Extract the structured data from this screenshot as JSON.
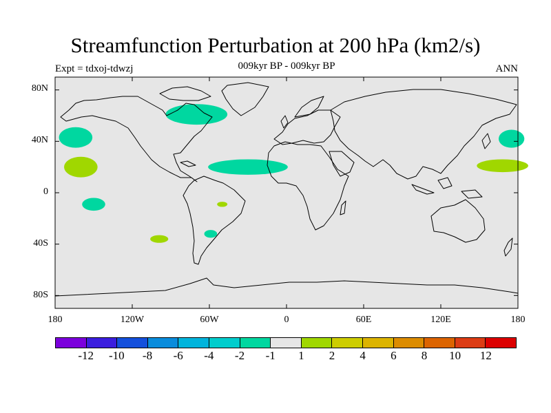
{
  "title": "Streamfunction Perturbation at 200 hPa (km2/s)",
  "expt_label": "Expt = tdxoj-tdwzj",
  "subtitle": "009kyr BP - 009kyr BP",
  "season": "ANN",
  "y_axis": {
    "ticks": [
      "80N",
      "40N",
      "0",
      "40S",
      "80S"
    ],
    "tick_lats": [
      80,
      40,
      0,
      -40,
      -80
    ],
    "range": [
      -90,
      90
    ]
  },
  "x_axis": {
    "ticks": [
      "180",
      "120W",
      "60W",
      "0",
      "60E",
      "120E",
      "180"
    ],
    "tick_lons": [
      -180,
      -120,
      -60,
      0,
      60,
      120,
      180
    ],
    "range": [
      -180,
      180
    ]
  },
  "map": {
    "background_color": "#e6e6e6",
    "projection": "cylindrical-equidistant"
  },
  "anomalies": [
    {
      "label": "N Pacific negative",
      "lon": -164,
      "lat": 43,
      "rlon": 13,
      "rlat": 8,
      "class": "-2..-1"
    },
    {
      "label": "Pacific positive",
      "lon": -160,
      "lat": 20,
      "rlon": 13,
      "rlat": 8,
      "class": "1..2"
    },
    {
      "label": "S Pacific negative",
      "lon": -150,
      "lat": -9,
      "rlon": 9,
      "rlat": 5,
      "class": "-2..-1"
    },
    {
      "label": "SE Pacific positive",
      "lon": -99,
      "lat": -36,
      "rlon": 7,
      "rlat": 3,
      "class": "1..2"
    },
    {
      "label": "Canada negative",
      "lon": -70,
      "lat": 61,
      "rlon": 24,
      "rlat": 8,
      "class": "-2..-1"
    },
    {
      "label": "Atlantic negative",
      "lon": -30,
      "lat": 20,
      "rlon": 31,
      "rlat": 6,
      "class": "-2..-1"
    },
    {
      "label": "Brazil positive",
      "lon": -50,
      "lat": -9,
      "rlon": 4,
      "rlat": 2,
      "class": "1..2"
    },
    {
      "label": "S America negative",
      "lon": -59,
      "lat": -32,
      "rlon": 5,
      "rlat": 3,
      "class": "-2..-1"
    },
    {
      "label": "W Pacific negative",
      "lon": 175,
      "lat": 42,
      "rlon": 10,
      "rlat": 7,
      "class": "-2..-1"
    },
    {
      "label": "W Pacific positive",
      "lon": 168,
      "lat": 21,
      "rlon": 20,
      "rlat": 5,
      "class": "1..2"
    }
  ],
  "colorbar": {
    "colors": [
      "#7b00dc",
      "#3b1ede",
      "#1450dc",
      "#0a8cdc",
      "#00b4dc",
      "#00cdcd",
      "#00d7a0",
      "#e6e6e6",
      "#a0d700",
      "#cdcd00",
      "#dcb400",
      "#dc8c00",
      "#dc6400",
      "#dc3c14",
      "#dc0000"
    ],
    "labels": [
      "-12",
      "-10",
      "-8",
      "-6",
      "-4",
      "-2",
      "-1",
      "1",
      "2",
      "4",
      "6",
      "8",
      "10",
      "12"
    ]
  },
  "class_colors": {
    "-2..-1": "#00d7a0",
    "1..2": "#a0d700"
  }
}
